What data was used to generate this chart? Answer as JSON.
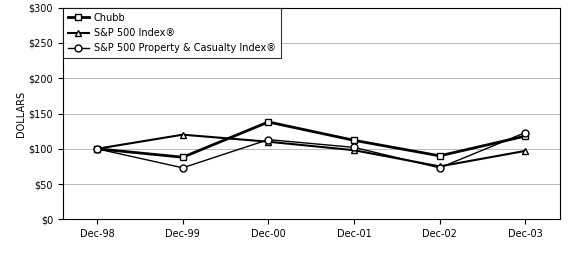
{
  "x_labels": [
    "Dec-98",
    "Dec-99",
    "Dec-00",
    "Dec-01",
    "Dec-02",
    "Dec-03"
  ],
  "x_values": [
    0,
    1,
    2,
    3,
    4,
    5
  ],
  "series": [
    {
      "name": "Chubb",
      "values": [
        100,
        88,
        138,
        112,
        90,
        118
      ],
      "marker": "s",
      "color": "black",
      "linewidth": 2.0,
      "markersize": 5,
      "markerfacecolor": "white"
    },
    {
      "name": "S&P 500 Index®",
      "values": [
        100,
        120,
        110,
        98,
        75,
        97
      ],
      "marker": "^",
      "color": "black",
      "linewidth": 1.5,
      "markersize": 5,
      "markerfacecolor": "white"
    },
    {
      "name": "S&P 500 Property & Casualty Index®",
      "values": [
        100,
        73,
        113,
        102,
        73,
        123
      ],
      "marker": "o",
      "color": "black",
      "linewidth": 1.0,
      "markersize": 5,
      "markerfacecolor": "white"
    }
  ],
  "ylabel": "DOLLARS",
  "ylim": [
    0,
    300
  ],
  "yticks": [
    0,
    50,
    100,
    150,
    200,
    250,
    300
  ],
  "ytick_labels": [
    "$0",
    "$50",
    "$100",
    "$150",
    "$200",
    "$250",
    "$300"
  ],
  "background_color": "#ffffff",
  "grid_color": "#b0b0b0",
  "tick_fontsize": 7,
  "ylabel_fontsize": 7,
  "legend_fontsize": 7
}
